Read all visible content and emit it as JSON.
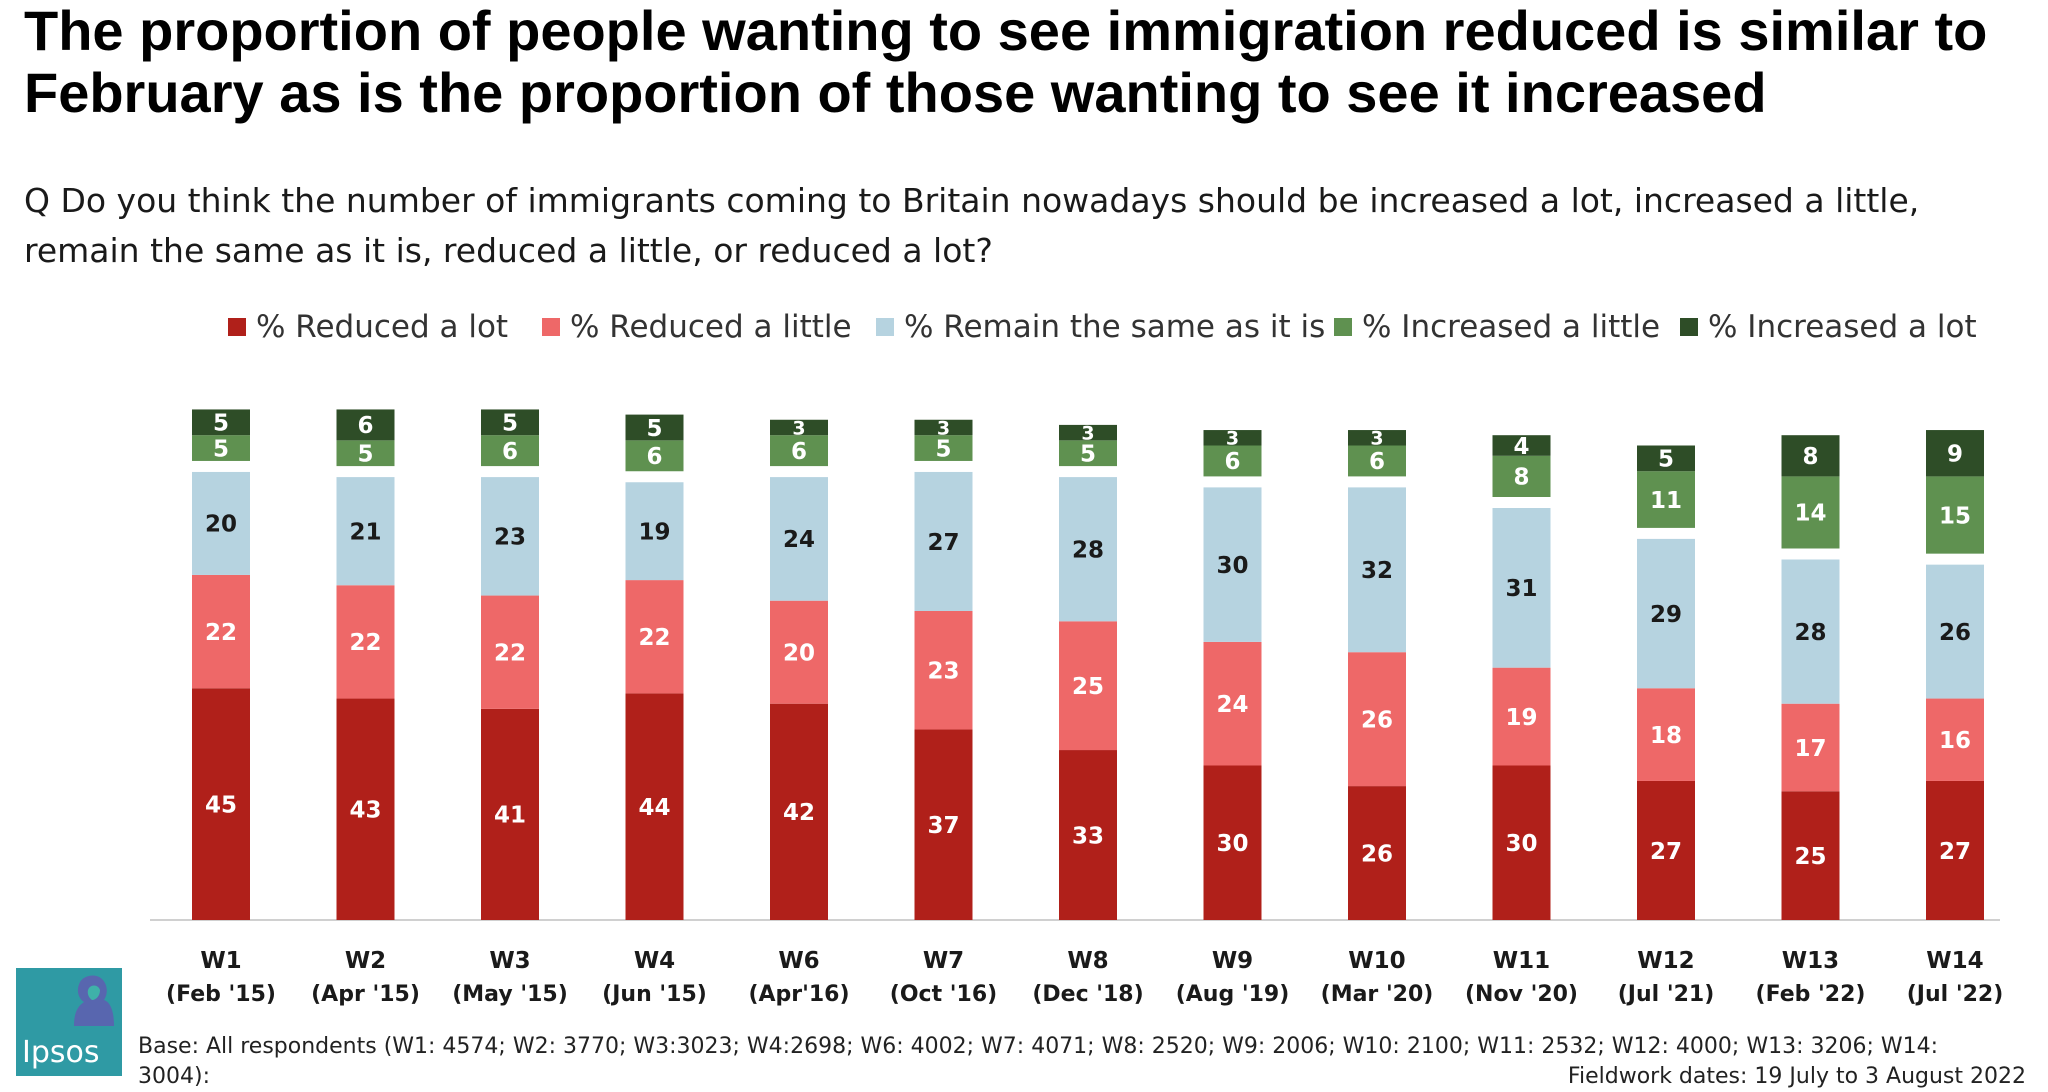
{
  "header": {
    "headline": "The proportion of people wanting to see immigration reduced is similar to February as is the proportion of those wanting to see it increased",
    "question": "Q Do you think the number of immigrants coming to Britain nowadays should be increased a lot, increased a little, remain the same as it is, reduced a little, or reduced a lot?"
  },
  "chart_data": {
    "type": "bar",
    "stacked": true,
    "categories": [
      "W1",
      "W2",
      "W3",
      "W4",
      "W6",
      "W7",
      "W8",
      "W9",
      "W10",
      "W11",
      "W12",
      "W13",
      "W14"
    ],
    "category_dates": [
      "(Feb '15)",
      "(Apr '15)",
      "(May '15)",
      "(Jun '15)",
      "(Apr'16)",
      "(Oct '16)",
      "(Dec '18)",
      "(Aug '19)",
      "(Mar '20)",
      "(Nov '20)",
      "(Jul '21)",
      "(Feb '22)",
      "(Jul '22)"
    ],
    "series": [
      {
        "name": "% Reduced a lot",
        "color": "#b0201a",
        "values": [
          45,
          43,
          41,
          44,
          42,
          37,
          33,
          30,
          26,
          30,
          27,
          25,
          27
        ]
      },
      {
        "name": "% Reduced a little",
        "color": "#ee6868",
        "values": [
          22,
          22,
          22,
          22,
          20,
          23,
          25,
          24,
          26,
          19,
          18,
          17,
          16
        ]
      },
      {
        "name": "% Remain the same as it is",
        "color": "#b6d3e0",
        "values": [
          20,
          21,
          23,
          19,
          24,
          27,
          28,
          30,
          32,
          31,
          29,
          28,
          26
        ]
      },
      {
        "name": "% Increased a little",
        "color": "#5f9150",
        "values": [
          5,
          5,
          6,
          6,
          6,
          5,
          5,
          6,
          6,
          8,
          11,
          14,
          15
        ]
      },
      {
        "name": "% Increased a lot",
        "color": "#2e4d27",
        "values": [
          5,
          6,
          5,
          5,
          3,
          3,
          3,
          3,
          3,
          4,
          5,
          8,
          9
        ]
      }
    ],
    "legend_position": "top",
    "grid": false
  },
  "footer": {
    "logo_text": "Ipsos",
    "base_note": "Base: All respondents (W1: 4574; W2: 3770; W3:3023; W4:2698; W6: 4002; W7: 4071; W8: 2520; W9: 2006; W10: 2100; W11: 2532; W12: 4000; W13: 3206; W14: 3004):",
    "fieldwork": "Fieldwork dates: 19 July to 3 August 2022"
  }
}
